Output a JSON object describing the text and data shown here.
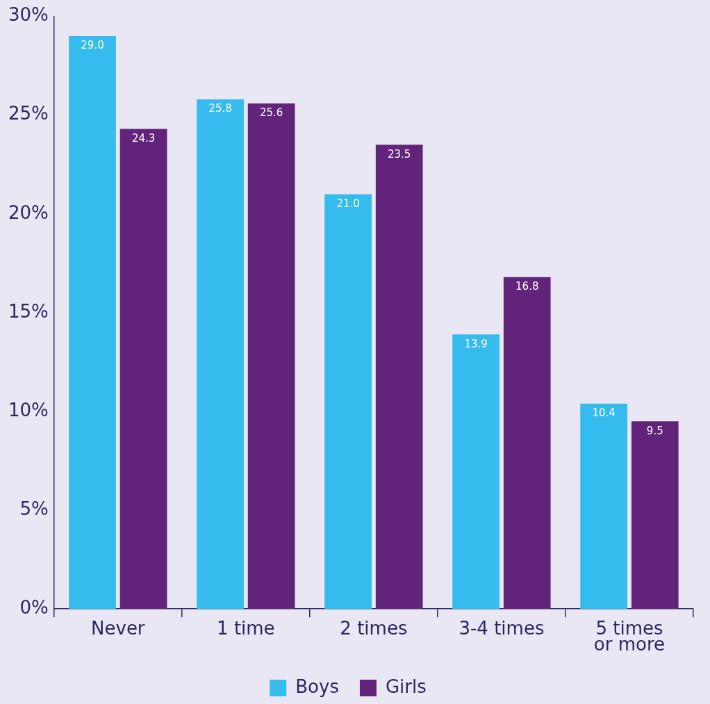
{
  "chart_data": {
    "type": "bar",
    "categories": [
      "Never",
      "1 time",
      "2 times",
      "3-4 times",
      "5 times or more"
    ],
    "series": [
      {
        "name": "Boys",
        "color": "#35bbee",
        "values": [
          29.0,
          25.8,
          21.0,
          13.9,
          10.4
        ],
        "value_labels": [
          "29.0",
          "25.8",
          "21.0",
          "13.9",
          "10.4"
        ]
      },
      {
        "name": "Girls",
        "color": "#62237b",
        "values": [
          24.3,
          25.6,
          23.5,
          16.8,
          9.5
        ],
        "value_labels": [
          "24.3",
          "25.6",
          "23.5",
          "16.8",
          "9.5"
        ]
      }
    ],
    "ylim": [
      0,
      30
    ],
    "yticks": [
      {
        "value": 0,
        "label": "0%"
      },
      {
        "value": 5,
        "label": "5%"
      },
      {
        "value": 10,
        "label": "10%"
      },
      {
        "value": 15,
        "label": "15%"
      },
      {
        "value": 20,
        "label": "20%"
      },
      {
        "value": 25,
        "label": "25%"
      },
      {
        "value": 30,
        "label": "30%"
      }
    ],
    "grid": false,
    "legend": "bottom"
  }
}
